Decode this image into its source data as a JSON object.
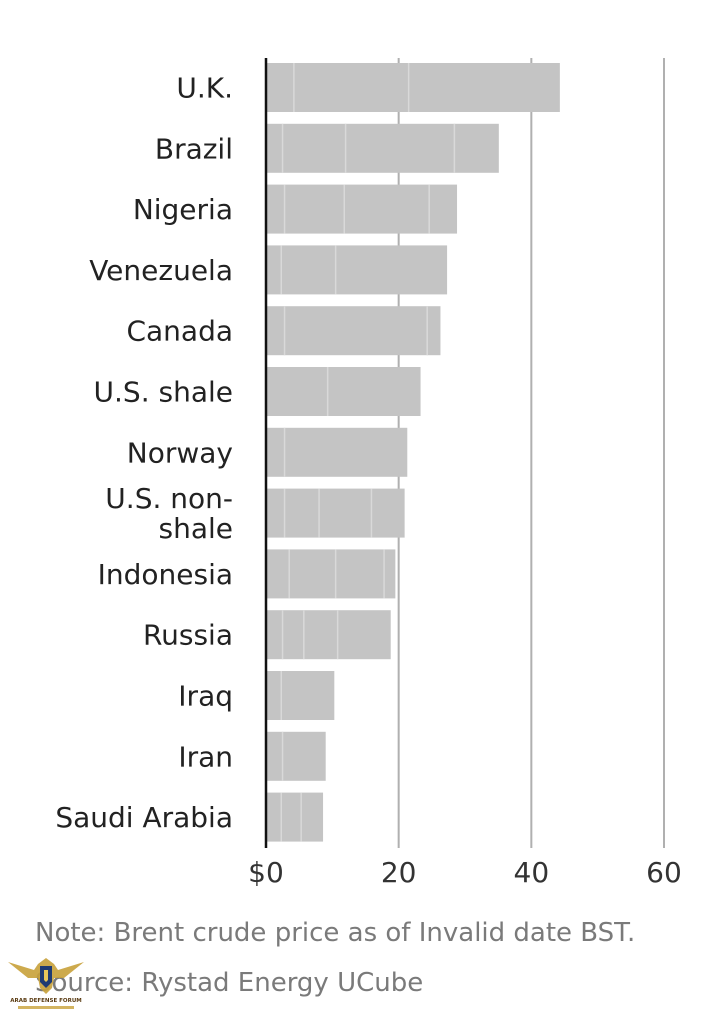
{
  "chart_data": {
    "type": "bar",
    "orientation": "horizontal",
    "categories": [
      "U.K.",
      "Brazil",
      "Nigeria",
      "Venezuela",
      "Canada",
      "U.S. shale",
      "Norway",
      "U.S. non-shale",
      "Indonesia",
      "Russia",
      "Iraq",
      "Iran",
      "Saudi Arabia"
    ],
    "category_lines": [
      [
        "U.K."
      ],
      [
        "Brazil"
      ],
      [
        "Nigeria"
      ],
      [
        "Venezuela"
      ],
      [
        "Canada"
      ],
      [
        "U.S. shale"
      ],
      [
        "Norway"
      ],
      [
        "U.S. non-",
        "shale"
      ],
      [
        "Indonesia"
      ],
      [
        "Russia"
      ],
      [
        "Iraq"
      ],
      [
        "Iran"
      ],
      [
        "Saudi Arabia"
      ]
    ],
    "values": [
      44.3,
      35.1,
      28.8,
      27.3,
      26.3,
      23.3,
      21.3,
      20.9,
      19.5,
      18.8,
      10.3,
      9.0,
      8.6
    ],
    "segment_breaks": [
      [
        4.2,
        21.5
      ],
      [
        2.5,
        12.0,
        28.4
      ],
      [
        2.8,
        11.8,
        24.6
      ],
      [
        2.3,
        10.5
      ],
      [
        2.8,
        24.3
      ],
      [
        9.3
      ],
      [
        2.8
      ],
      [
        2.8,
        8.0,
        15.9
      ],
      [
        3.5,
        10.5,
        17.8
      ],
      [
        2.5,
        5.7,
        10.8
      ],
      [
        2.3
      ],
      [
        2.5
      ],
      [
        2.3,
        5.3
      ]
    ],
    "xlim": [
      0,
      60
    ],
    "xticks": [
      0,
      20,
      40,
      60
    ],
    "xtick_labels": [
      "$0",
      "20",
      "40",
      "60"
    ],
    "grid": true,
    "title": "",
    "xlabel": "",
    "ylabel": "",
    "colors": {
      "bar": "#c4c4c4",
      "segment_line": "#d9d9d9",
      "grid": "#b0b0b0",
      "axis": "#111111"
    }
  },
  "footer": {
    "note": "Note: Brent crude price as of Invalid date BST.",
    "source": "Source: Rystad Energy UCube"
  },
  "watermark": {
    "text": "ARAB DEFENSE FORUM",
    "icon": "eagle-shield-logo"
  }
}
